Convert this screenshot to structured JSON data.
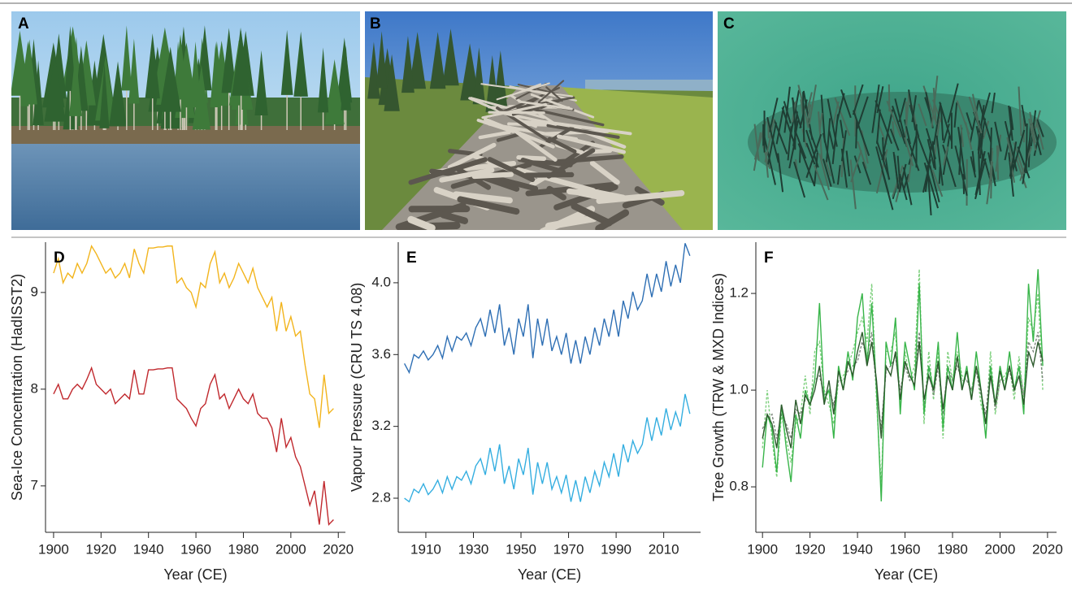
{
  "panels": {
    "a": {
      "label": "A"
    },
    "b": {
      "label": "B"
    },
    "c": {
      "label": "C"
    }
  },
  "chart_data": [
    {
      "type": "line",
      "label": "D",
      "y_label": "Sea-Ice Concentration (HadISST2)",
      "x_label": "Year (CE)",
      "xlim": [
        1896.6,
        2023
      ],
      "ylim": [
        6.52,
        9.52
      ],
      "xticks": [
        1900,
        1920,
        1940,
        1960,
        1980,
        2000,
        2020
      ],
      "yticks": [
        7,
        8,
        9
      ],
      "x": [
        1900,
        1902,
        1904,
        1906,
        1908,
        1910,
        1912,
        1914,
        1916,
        1918,
        1920,
        1922,
        1924,
        1926,
        1928,
        1930,
        1932,
        1934,
        1936,
        1938,
        1940,
        1942,
        1944,
        1946,
        1948,
        1950,
        1952,
        1954,
        1956,
        1958,
        1960,
        1962,
        1964,
        1966,
        1968,
        1970,
        1972,
        1974,
        1976,
        1978,
        1980,
        1982,
        1984,
        1986,
        1988,
        1990,
        1992,
        1994,
        1996,
        1998,
        2000,
        2002,
        2004,
        2006,
        2008,
        2010,
        2012,
        2014,
        2016,
        2018
      ],
      "series": [
        {
          "color": "#f2b41c",
          "style": "solid",
          "values": [
            9.2,
            9.35,
            9.1,
            9.2,
            9.15,
            9.3,
            9.2,
            9.3,
            9.48,
            9.4,
            9.3,
            9.2,
            9.25,
            9.15,
            9.2,
            9.3,
            9.15,
            9.45,
            9.3,
            9.2,
            9.46,
            9.46,
            9.47,
            9.47,
            9.48,
            9.48,
            9.1,
            9.15,
            9.05,
            9.0,
            8.85,
            9.1,
            9.05,
            9.3,
            9.42,
            9.1,
            9.2,
            9.05,
            9.15,
            9.3,
            9.2,
            9.1,
            9.25,
            9.05,
            8.95,
            8.85,
            8.95,
            8.6,
            8.9,
            8.6,
            8.75,
            8.55,
            8.6,
            8.25,
            7.95,
            7.9,
            7.6,
            8.15,
            7.75,
            7.8
          ]
        },
        {
          "color": "#c0282d",
          "style": "solid",
          "values": [
            7.95,
            8.05,
            7.9,
            7.9,
            8.0,
            8.05,
            8.0,
            8.1,
            8.22,
            8.05,
            8.0,
            7.95,
            8.0,
            7.85,
            7.9,
            7.95,
            7.9,
            8.2,
            7.95,
            7.95,
            8.2,
            8.2,
            8.21,
            8.21,
            8.22,
            8.22,
            7.9,
            7.85,
            7.8,
            7.7,
            7.62,
            7.8,
            7.85,
            8.05,
            8.15,
            7.9,
            7.95,
            7.8,
            7.9,
            8.0,
            7.9,
            7.85,
            7.95,
            7.75,
            7.7,
            7.7,
            7.6,
            7.35,
            7.7,
            7.4,
            7.5,
            7.3,
            7.2,
            7.0,
            6.8,
            6.95,
            6.6,
            7.05,
            6.6,
            6.65
          ]
        }
      ]
    },
    {
      "type": "line",
      "label": "E",
      "y_label": "Vapour Pressure (CRU TS 4.08)",
      "x_label": "Year (CE)",
      "xlim": [
        1898.4,
        2025.5
      ],
      "ylim": [
        2.61,
        4.226
      ],
      "xticks": [
        1910,
        1930,
        1950,
        1970,
        1990,
        2010
      ],
      "yticks": [
        2.8,
        3.2,
        3.6,
        {
          "value": 4,
          "label": "4.0"
        }
      ],
      "x": [
        1901,
        1903,
        1905,
        1907,
        1909,
        1911,
        1913,
        1915,
        1917,
        1919,
        1921,
        1923,
        1925,
        1927,
        1929,
        1931,
        1933,
        1935,
        1937,
        1939,
        1941,
        1943,
        1945,
        1947,
        1949,
        1951,
        1953,
        1955,
        1957,
        1959,
        1961,
        1963,
        1965,
        1967,
        1969,
        1971,
        1973,
        1975,
        1977,
        1979,
        1981,
        1983,
        1985,
        1987,
        1989,
        1991,
        1993,
        1995,
        1997,
        1999,
        2001,
        2003,
        2005,
        2007,
        2009,
        2011,
        2013,
        2015,
        2017,
        2019,
        2021
      ],
      "series": [
        {
          "color": "#2e6fb4",
          "style": "solid",
          "values": [
            3.55,
            3.5,
            3.6,
            3.58,
            3.62,
            3.57,
            3.6,
            3.65,
            3.58,
            3.7,
            3.62,
            3.7,
            3.68,
            3.72,
            3.65,
            3.75,
            3.8,
            3.7,
            3.85,
            3.72,
            3.88,
            3.65,
            3.75,
            3.6,
            3.8,
            3.7,
            3.88,
            3.58,
            3.8,
            3.65,
            3.8,
            3.62,
            3.7,
            3.6,
            3.72,
            3.55,
            3.68,
            3.55,
            3.7,
            3.6,
            3.75,
            3.65,
            3.8,
            3.7,
            3.85,
            3.7,
            3.9,
            3.8,
            3.95,
            3.85,
            3.9,
            4.05,
            3.92,
            4.05,
            3.95,
            4.12,
            3.98,
            4.1,
            4.0,
            4.22,
            4.15
          ]
        },
        {
          "color": "#34aee0",
          "style": "solid",
          "values": [
            2.8,
            2.78,
            2.85,
            2.83,
            2.88,
            2.82,
            2.85,
            2.9,
            2.83,
            2.92,
            2.85,
            2.92,
            2.9,
            2.95,
            2.88,
            2.98,
            3.02,
            2.93,
            3.08,
            2.95,
            3.1,
            2.88,
            2.98,
            2.85,
            3.02,
            2.93,
            3.08,
            2.82,
            3.0,
            2.88,
            3.0,
            2.85,
            2.92,
            2.83,
            2.93,
            2.78,
            2.9,
            2.78,
            2.92,
            2.83,
            2.95,
            2.87,
            3.0,
            2.92,
            3.05,
            2.92,
            3.1,
            3.0,
            3.12,
            3.05,
            3.1,
            3.25,
            3.12,
            3.25,
            3.15,
            3.3,
            3.18,
            3.28,
            3.2,
            3.38,
            3.27
          ]
        }
      ]
    },
    {
      "type": "line",
      "label": "F",
      "y_label": "Tree Growth (TRW & MXD Indices)",
      "x_label": "Year (CE)",
      "xlim": [
        1897.2,
        2023.8
      ],
      "ylim": [
        0.706,
        1.306
      ],
      "xticks": [
        1900,
        1920,
        1940,
        1960,
        1980,
        2000,
        2020
      ],
      "yticks": [
        0.8,
        {
          "value": 1,
          "label": "1.0"
        },
        1.2
      ],
      "x": [
        1900,
        1902,
        1904,
        1906,
        1908,
        1910,
        1912,
        1914,
        1916,
        1918,
        1920,
        1922,
        1924,
        1926,
        1928,
        1930,
        1932,
        1934,
        1936,
        1938,
        1940,
        1942,
        1944,
        1946,
        1948,
        1950,
        1952,
        1954,
        1956,
        1958,
        1960,
        1962,
        1964,
        1966,
        1968,
        1970,
        1972,
        1974,
        1976,
        1978,
        1980,
        1982,
        1984,
        1986,
        1988,
        1990,
        1992,
        1994,
        1996,
        1998,
        2000,
        2002,
        2004,
        2006,
        2008,
        2010,
        2012,
        2014,
        2016,
        2018
      ],
      "series": [
        {
          "color": "#7fd07f",
          "style": "dashed",
          "values": [
            0.88,
            1.0,
            0.9,
            0.82,
            0.95,
            0.9,
            0.85,
            0.93,
            0.95,
            1.03,
            0.95,
            1.08,
            1.1,
            1.0,
            0.97,
            0.93,
            1.02,
            1.03,
            1.05,
            1.08,
            1.12,
            1.15,
            1.1,
            1.22,
            0.98,
            0.8,
            1.08,
            1.08,
            1.12,
            0.97,
            1.08,
            1.02,
            1.05,
            1.25,
            0.93,
            1.08,
            0.98,
            1.08,
            0.9,
            1.08,
            1.02,
            1.08,
            1.03,
            1.02,
            1.0,
            1.05,
            0.97,
            0.93,
            1.08,
            0.95,
            1.02,
            1.03,
            1.05,
            0.98,
            1.07,
            0.98,
            1.15,
            1.12,
            1.2,
            1.0
          ]
        },
        {
          "color": "#7a857a",
          "style": "dashed",
          "values": [
            0.92,
            0.94,
            0.95,
            0.9,
            0.95,
            0.93,
            0.9,
            0.96,
            0.95,
            0.98,
            0.98,
            1.02,
            1.03,
            0.99,
            1.0,
            0.97,
            1.02,
            1.02,
            1.04,
            1.05,
            1.06,
            1.1,
            1.07,
            1.12,
            1.0,
            0.92,
            1.04,
            1.05,
            1.07,
            1.0,
            1.05,
            1.02,
            1.03,
            1.12,
            0.97,
            1.05,
            0.99,
            1.05,
            0.95,
            1.05,
            1.02,
            1.05,
            1.02,
            1.02,
            1.0,
            1.04,
            0.99,
            0.95,
            1.05,
            0.96,
            1.02,
            1.02,
            1.04,
            1.0,
            1.05,
            0.99,
            1.1,
            1.08,
            1.12,
            1.02
          ]
        },
        {
          "color": "#39b54a",
          "style": "solid",
          "values": [
            0.84,
            0.95,
            0.92,
            0.83,
            0.97,
            0.88,
            0.81,
            0.95,
            0.9,
            1.0,
            0.97,
            1.02,
            1.18,
            0.98,
            1.0,
            0.9,
            1.05,
            1.0,
            1.08,
            1.02,
            1.15,
            1.2,
            1.05,
            1.18,
            1.0,
            0.77,
            1.1,
            1.05,
            1.15,
            0.95,
            1.1,
            1.05,
            1.0,
            1.22,
            0.95,
            1.05,
            1.0,
            1.1,
            0.92,
            1.05,
            1.0,
            1.12,
            1.0,
            1.05,
            0.98,
            1.08,
            1.0,
            0.9,
            1.05,
            0.97,
            1.05,
            1.0,
            1.08,
            1.0,
            1.05,
            0.95,
            1.22,
            1.1,
            1.25,
            1.05
          ]
        },
        {
          "color": "#2c5a2c",
          "style": "solid",
          "values": [
            0.9,
            0.95,
            0.93,
            0.88,
            0.97,
            0.92,
            0.88,
            0.98,
            0.93,
            0.99,
            0.97,
            1.0,
            1.05,
            0.97,
            1.02,
            0.95,
            1.04,
            1.0,
            1.06,
            1.03,
            1.08,
            1.12,
            1.05,
            1.1,
            1.02,
            0.9,
            1.05,
            1.03,
            1.08,
            0.98,
            1.06,
            1.03,
            1.01,
            1.1,
            0.98,
            1.03,
            1.0,
            1.06,
            0.96,
            1.03,
            1.0,
            1.07,
            1.0,
            1.04,
            0.98,
            1.05,
            1.0,
            0.93,
            1.03,
            0.97,
            1.04,
            1.0,
            1.05,
            1.0,
            1.03,
            0.97,
            1.08,
            1.05,
            1.1,
            1.06
          ]
        }
      ]
    }
  ]
}
